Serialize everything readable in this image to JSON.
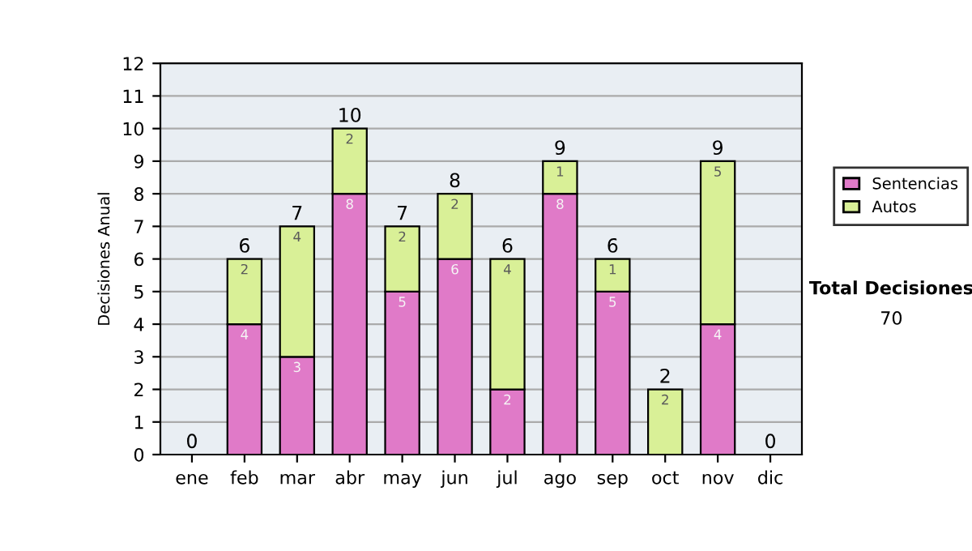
{
  "chart_data": {
    "type": "bar",
    "stacked": true,
    "ylabel": "Decisiones Anual",
    "categories": [
      "ene",
      "feb",
      "mar",
      "abr",
      "may",
      "jun",
      "jul",
      "ago",
      "sep",
      "oct",
      "nov",
      "dic"
    ],
    "series": [
      {
        "name": "Sentencias",
        "color": "#e07ac8",
        "values": [
          0,
          4,
          3,
          8,
          5,
          6,
          2,
          8,
          5,
          0,
          4,
          0
        ],
        "value_labels": [
          null,
          "4",
          "3",
          "8",
          "5",
          "6",
          "2",
          "8",
          "5",
          null,
          "4",
          null
        ]
      },
      {
        "name": "Autos",
        "color": "#d9f097",
        "values": [
          0,
          2,
          4,
          2,
          2,
          2,
          4,
          1,
          1,
          2,
          5,
          0
        ],
        "value_labels": [
          null,
          "2",
          "4",
          "2",
          "2",
          "2",
          "4",
          "1",
          "1",
          "2",
          "5",
          null
        ]
      }
    ],
    "totals": [
      "0",
      "6",
      "7",
      "10",
      "7",
      "8",
      "6",
      "9",
      "6",
      "2",
      "9",
      "0"
    ],
    "ylim": [
      0,
      12
    ],
    "yticks": [
      0,
      1,
      2,
      3,
      4,
      5,
      6,
      7,
      8,
      9,
      10,
      11,
      12
    ],
    "grid": "y",
    "legend": "right",
    "annotations": [
      "Total Decisiones",
      "70"
    ]
  }
}
